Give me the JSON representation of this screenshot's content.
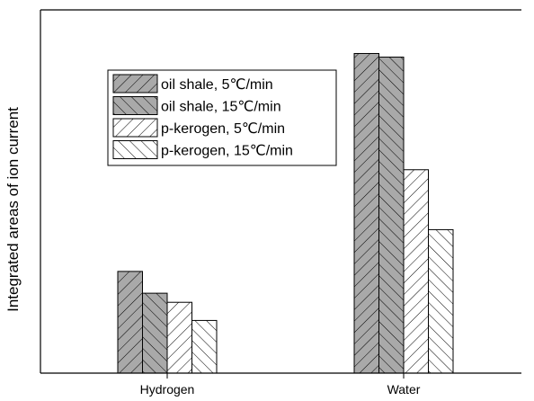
{
  "chart_data": {
    "type": "bar",
    "title": "",
    "xlabel": "",
    "ylabel": "Integrated areas of ion current",
    "categories": [
      "Hydrogen",
      "Water"
    ],
    "ylim": [
      0,
      1
    ],
    "grid": false,
    "legend_position": "top-left",
    "series": [
      {
        "name": "oil shale, 5℃/min",
        "values": [
          0.28,
          0.88
        ],
        "fill": "#a9a9a9",
        "hatch": "forward"
      },
      {
        "name": "oil shale, 15℃/min",
        "values": [
          0.22,
          0.87
        ],
        "fill": "#a9a9a9",
        "hatch": "backward"
      },
      {
        "name": "p-kerogen, 5℃/min",
        "values": [
          0.195,
          0.56
        ],
        "fill": "#ffffff",
        "hatch": "forward"
      },
      {
        "name": "p-kerogen, 15℃/min",
        "values": [
          0.145,
          0.395
        ],
        "fill": "#ffffff",
        "hatch": "backward"
      }
    ]
  }
}
